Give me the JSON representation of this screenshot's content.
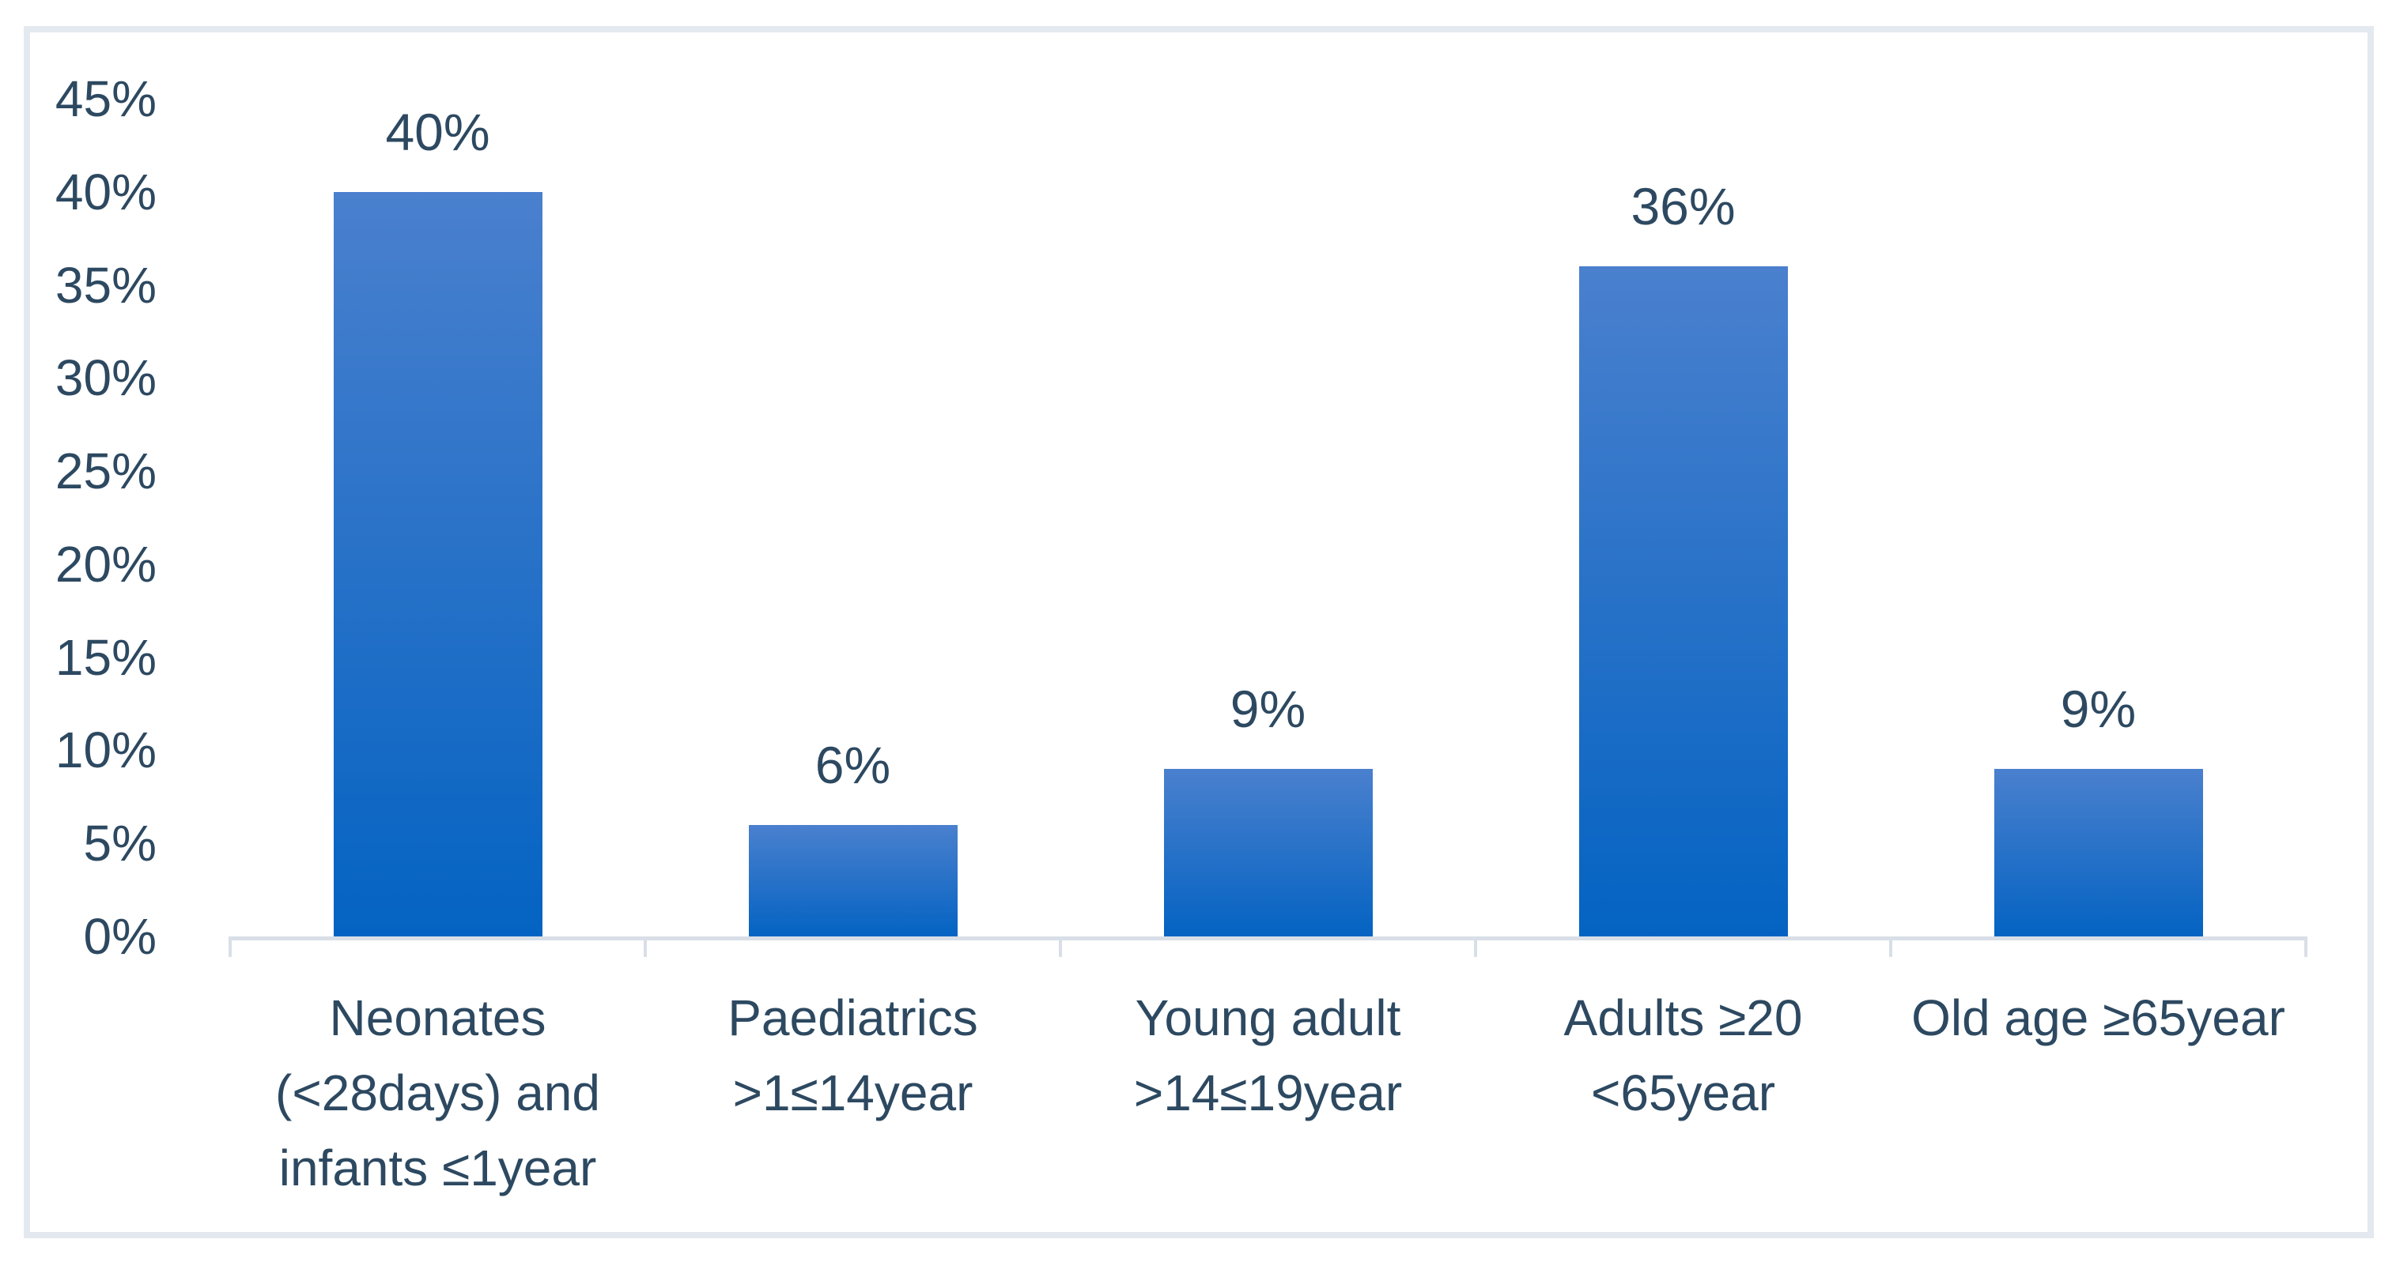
{
  "chart_data": {
    "type": "bar",
    "categories": [
      "Neonates (<28days) and infants ≤1year",
      "Paediatrics >1≤14year",
      "Young adult >14≤19year",
      "Adults ≥20 <65year",
      "Old age ≥65year"
    ],
    "values": [
      40,
      6,
      9,
      36,
      9
    ],
    "value_labels": [
      "40%",
      "6%",
      "9%",
      "36%",
      "9%"
    ],
    "y_axis": {
      "tick_labels": [
        "45%",
        "40%",
        "35%",
        "30%",
        "25%",
        "20%",
        "15%",
        "10%",
        "5%",
        "0%"
      ],
      "min": 0,
      "max": 45,
      "step": 5,
      "format": "percent"
    },
    "title": "",
    "xlabel": "",
    "ylabel": "",
    "grid": false,
    "legend": false,
    "layout_hints": {
      "bar_gap": "wide",
      "data_labels_position": "above-bar",
      "tick_marks": "outside-below-axis"
    },
    "colors": {
      "bar_gradient_top": "#4a80ce",
      "bar_gradient_bottom": "#0463c2",
      "label_text": "#2d4961",
      "axis_line": "#d9dfe7",
      "chart_border": "#e4e9ef",
      "background": "#ffffff"
    }
  }
}
